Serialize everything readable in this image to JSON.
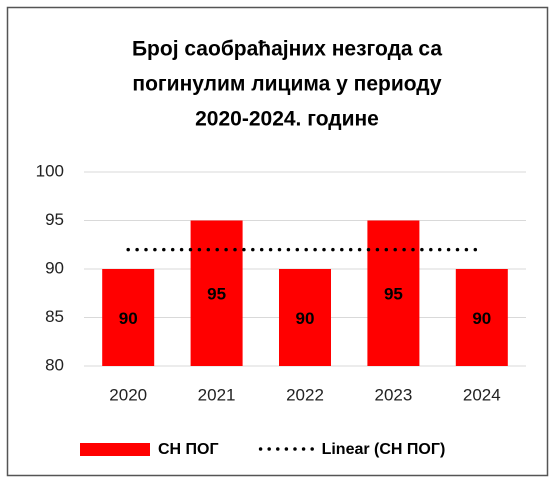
{
  "chart_data": {
    "type": "bar",
    "title": [
      "Број саобраћајних незгода са",
      "погинулим лицима у периоду",
      "2020-2024. године"
    ],
    "categories": [
      "2020",
      "2021",
      "2022",
      "2023",
      "2024"
    ],
    "series": [
      {
        "name": "СН ПОГ",
        "color": "#ff0000",
        "values": [
          90,
          95,
          90,
          95,
          90
        ]
      },
      {
        "name": "Linear (СН ПОГ)",
        "color": "#000000",
        "type": "trendline",
        "values": [
          92,
          92,
          92,
          92,
          92
        ]
      }
    ],
    "ylim": [
      80,
      100
    ],
    "yticks": [
      80,
      85,
      90,
      95,
      100
    ],
    "grid": true,
    "legend": "bottom"
  }
}
